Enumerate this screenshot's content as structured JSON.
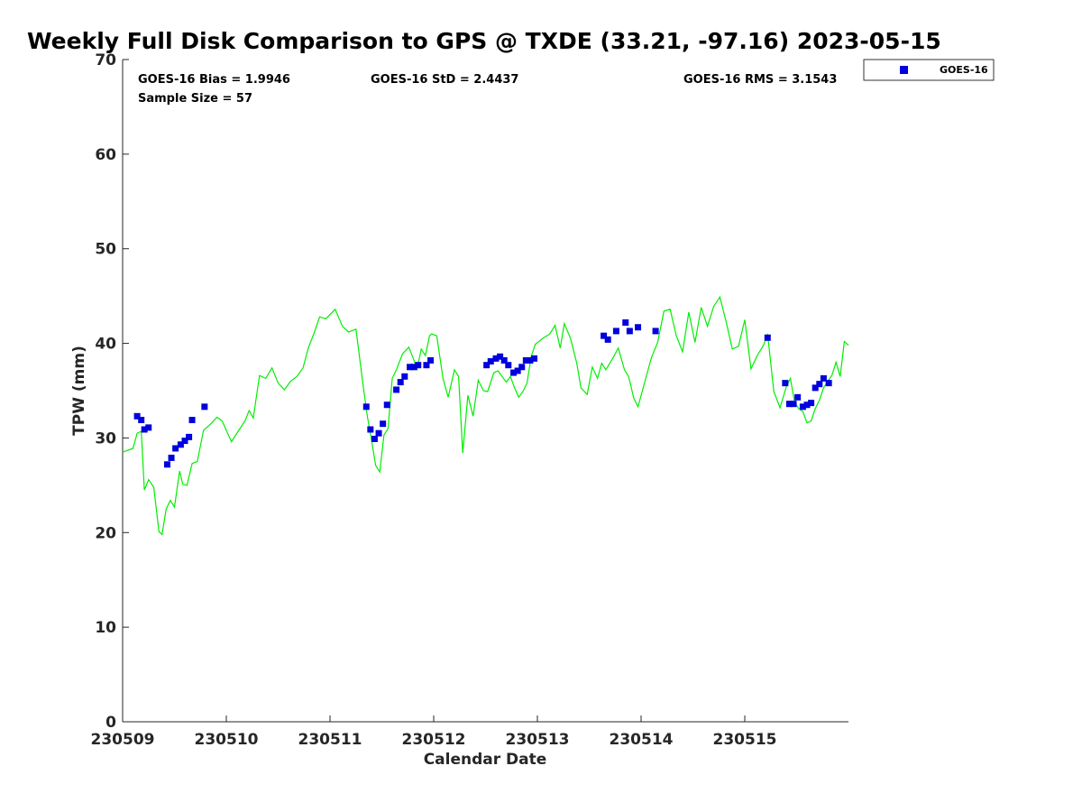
{
  "chart_data": {
    "type": "line",
    "title": "Weekly Full Disk Comparison to GPS @ TXDE (33.21, -97.16) 2023-05-15",
    "xlabel": "Calendar Date",
    "ylabel": "TPW (mm)",
    "ylim": [
      0,
      70
    ],
    "xlim": [
      230509,
      230516
    ],
    "yticks": [
      0,
      10,
      20,
      30,
      40,
      50,
      60,
      70
    ],
    "xticks": [
      230509,
      230510,
      230511,
      230512,
      230513,
      230514,
      230515
    ],
    "xtick_labels": [
      "230509",
      "230510",
      "230511",
      "230512",
      "230513",
      "230514",
      "230515"
    ],
    "grid": false,
    "legend_position": "top-right (outside plot)",
    "stats": {
      "bias": "GOES-16 Bias = 1.9946",
      "std": "GOES-16 StD = 2.4437",
      "rms": "GOES-16 RMS = 3.1543",
      "sample": "Sample Size = 57"
    },
    "series": [
      {
        "name": "GOES-16",
        "kind": "scatter",
        "marker": "square",
        "color": "#0000dd",
        "x": [
          230509.14,
          230509.18,
          230509.21,
          230509.25,
          230509.43,
          230509.47,
          230509.51,
          230509.56,
          230509.6,
          230509.64,
          230509.67,
          230509.79,
          230511.35,
          230511.39,
          230511.43,
          230511.47,
          230511.51,
          230511.55,
          230511.64,
          230511.68,
          230511.72,
          230511.77,
          230511.81,
          230511.85,
          230511.93,
          230511.97,
          230512.51,
          230512.55,
          230512.6,
          230512.64,
          230512.68,
          230512.72,
          230512.77,
          230512.81,
          230512.85,
          230512.89,
          230512.93,
          230512.97,
          230513.64,
          230513.68,
          230513.76,
          230513.85,
          230513.89,
          230513.97,
          230514.14,
          230515.22,
          230515.39,
          230515.43,
          230515.47,
          230515.51,
          230515.56,
          230515.6,
          230515.64,
          230515.68,
          230515.72,
          230515.76,
          230515.81
        ],
        "y": [
          32.3,
          31.9,
          30.9,
          31.1,
          27.2,
          27.9,
          28.9,
          29.3,
          29.7,
          30.1,
          31.9,
          33.3,
          33.3,
          30.9,
          29.9,
          30.5,
          31.5,
          33.5,
          35.1,
          35.9,
          36.5,
          37.5,
          37.5,
          37.7,
          37.7,
          38.2,
          37.7,
          38.1,
          38.4,
          38.6,
          38.2,
          37.7,
          36.9,
          37.1,
          37.5,
          38.2,
          38.2,
          38.4,
          40.8,
          40.4,
          41.3,
          42.2,
          41.3,
          41.7,
          41.3,
          40.6,
          35.8,
          33.6,
          33.6,
          34.3,
          33.3,
          33.5,
          33.7,
          35.3,
          35.7,
          36.3,
          35.8
        ]
      },
      {
        "name": "GPS",
        "kind": "line",
        "color": "#00ee00",
        "x": [
          230509.0,
          230509.1,
          230509.14,
          230509.18,
          230509.21,
          230509.25,
          230509.3,
          230509.35,
          230509.38,
          230509.42,
          230509.46,
          230509.5,
          230509.55,
          230509.58,
          230509.62,
          230509.67,
          230509.72,
          230509.78,
          230509.85,
          230509.91,
          230509.96,
          230510.05,
          230510.12,
          230510.18,
          230510.22,
          230510.26,
          230510.32,
          230510.38,
          230510.44,
          230510.5,
          230510.56,
          230510.62,
          230510.68,
          230510.74,
          230510.79,
          230510.85,
          230510.9,
          230510.96,
          230511.05,
          230511.12,
          230511.18,
          230511.25,
          230511.32,
          230511.36,
          230511.4,
          230511.44,
          230511.48,
          230511.52,
          230511.56,
          230511.6,
          230511.64,
          230511.7,
          230511.76,
          230511.8,
          230511.84,
          230511.88,
          230511.92,
          230511.96,
          230511.98,
          230512.03,
          230512.09,
          230512.14,
          230512.2,
          230512.24,
          230512.28,
          230512.33,
          230512.38,
          230512.43,
          230512.48,
          230512.52,
          230512.58,
          230512.62,
          230512.66,
          230512.7,
          230512.74,
          230512.78,
          230512.82,
          230512.86,
          230512.9,
          230512.94,
          230512.98,
          230513.05,
          230513.12,
          230513.17,
          230513.22,
          230513.26,
          230513.32,
          230513.38,
          230513.42,
          230513.48,
          230513.53,
          230513.58,
          230513.62,
          230513.66,
          230513.72,
          230513.78,
          230513.84,
          230513.88,
          230513.93,
          230513.97,
          230514.04,
          230514.1,
          230514.16,
          230514.22,
          230514.28,
          230514.34,
          230514.4,
          230514.46,
          230514.52,
          230514.58,
          230514.64,
          230514.7,
          230514.76,
          230514.82,
          230514.88,
          230514.94,
          230515.0,
          230515.06,
          230515.12,
          230515.18,
          230515.22,
          230515.28,
          230515.34,
          230515.4,
          230515.44,
          230515.48,
          230515.52,
          230515.56,
          230515.6,
          230515.64,
          230515.68,
          230515.72,
          230515.76,
          230515.8,
          230515.84,
          230515.88,
          230515.92,
          230515.96,
          230516.0
        ],
        "y": [
          28.5,
          28.9,
          30.5,
          30.7,
          24.5,
          25.6,
          24.8,
          20.1,
          19.8,
          22.5,
          23.4,
          22.7,
          26.5,
          25.1,
          25.0,
          27.3,
          27.5,
          30.8,
          31.5,
          32.2,
          31.8,
          29.6,
          30.8,
          31.8,
          32.9,
          32.1,
          36.6,
          36.3,
          37.4,
          35.8,
          35.1,
          36.0,
          36.5,
          37.4,
          39.5,
          41.2,
          42.8,
          42.6,
          43.6,
          41.8,
          41.2,
          41.5,
          35.5,
          32.3,
          29.8,
          27.1,
          26.4,
          30.3,
          31.0,
          36.3,
          37.2,
          38.9,
          39.6,
          38.5,
          37.3,
          39.4,
          38.7,
          40.8,
          41.0,
          40.8,
          36.3,
          34.3,
          37.2,
          36.5,
          28.4,
          34.5,
          32.3,
          36.1,
          35.0,
          34.9,
          36.9,
          37.1,
          36.5,
          35.9,
          36.5,
          35.3,
          34.3,
          34.9,
          35.8,
          38.6,
          39.9,
          40.5,
          41.0,
          41.9,
          39.5,
          42.1,
          40.5,
          37.9,
          35.3,
          34.6,
          37.5,
          36.3,
          37.9,
          37.2,
          38.3,
          39.5,
          37.2,
          36.5,
          34.2,
          33.3,
          36.1,
          38.5,
          40.1,
          43.4,
          43.6,
          40.8,
          39.1,
          43.3,
          40.1,
          43.8,
          41.8,
          43.9,
          44.9,
          42.3,
          39.4,
          39.7,
          42.5,
          37.3,
          38.7,
          39.8,
          41.0,
          34.9,
          33.2,
          35.4,
          36.3,
          33.8,
          33.1,
          32.8,
          31.6,
          31.8,
          33.1,
          34.0,
          35.3,
          36.0,
          36.6,
          38.0,
          36.5,
          40.2,
          39.8
        ]
      }
    ]
  },
  "legend": {
    "label": "GOES-16"
  }
}
